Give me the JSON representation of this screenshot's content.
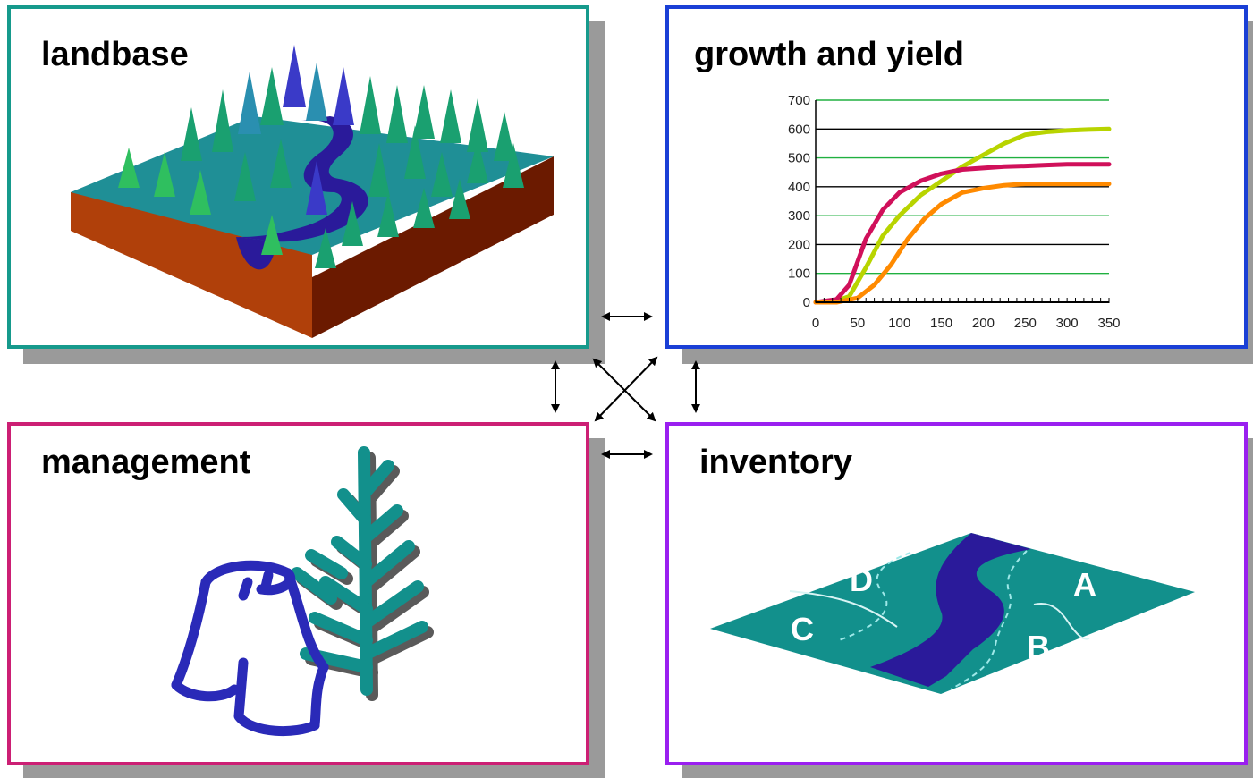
{
  "panels": {
    "landbase": {
      "title": "landbase",
      "border": "#169a8c"
    },
    "growth": {
      "title": "growth and yield",
      "border": "#1a3fd6"
    },
    "management": {
      "title": "management",
      "border": "#cc1f74"
    },
    "inventory": {
      "title": "inventory",
      "border": "#9a1ff0",
      "stand_labels": {
        "a": "A",
        "b": "B",
        "c": "C",
        "d": "D"
      }
    }
  },
  "chart_data": {
    "type": "line",
    "x_ticks": [
      "0",
      "50",
      "100",
      "150",
      "200",
      "250",
      "300",
      "350"
    ],
    "y_ticks": [
      "0",
      "100",
      "200",
      "300",
      "400",
      "500",
      "600",
      "700"
    ],
    "xlim": [
      0,
      350
    ],
    "ylim": [
      0,
      700
    ],
    "grid": true,
    "series": [
      {
        "color": "#b8d400",
        "x": [
          0,
          25,
          40,
          60,
          80,
          100,
          125,
          150,
          175,
          200,
          225,
          250,
          275,
          300,
          325,
          350
        ],
        "y": [
          0,
          5,
          20,
          120,
          230,
          300,
          370,
          420,
          470,
          510,
          550,
          580,
          590,
          595,
          598,
          600
        ]
      },
      {
        "color": "#d0105a",
        "x": [
          0,
          25,
          40,
          60,
          80,
          100,
          125,
          150,
          175,
          200,
          225,
          250,
          275,
          300,
          325,
          350
        ],
        "y": [
          0,
          10,
          60,
          220,
          320,
          380,
          420,
          445,
          460,
          465,
          470,
          472,
          475,
          478,
          478,
          478
        ]
      },
      {
        "color": "#ff8a00",
        "x": [
          0,
          25,
          50,
          70,
          90,
          110,
          130,
          150,
          175,
          200,
          225,
          250,
          275,
          300,
          325,
          350
        ],
        "y": [
          0,
          0,
          15,
          60,
          130,
          220,
          290,
          340,
          380,
          395,
          405,
          410,
          410,
          410,
          410,
          410
        ]
      }
    ]
  }
}
